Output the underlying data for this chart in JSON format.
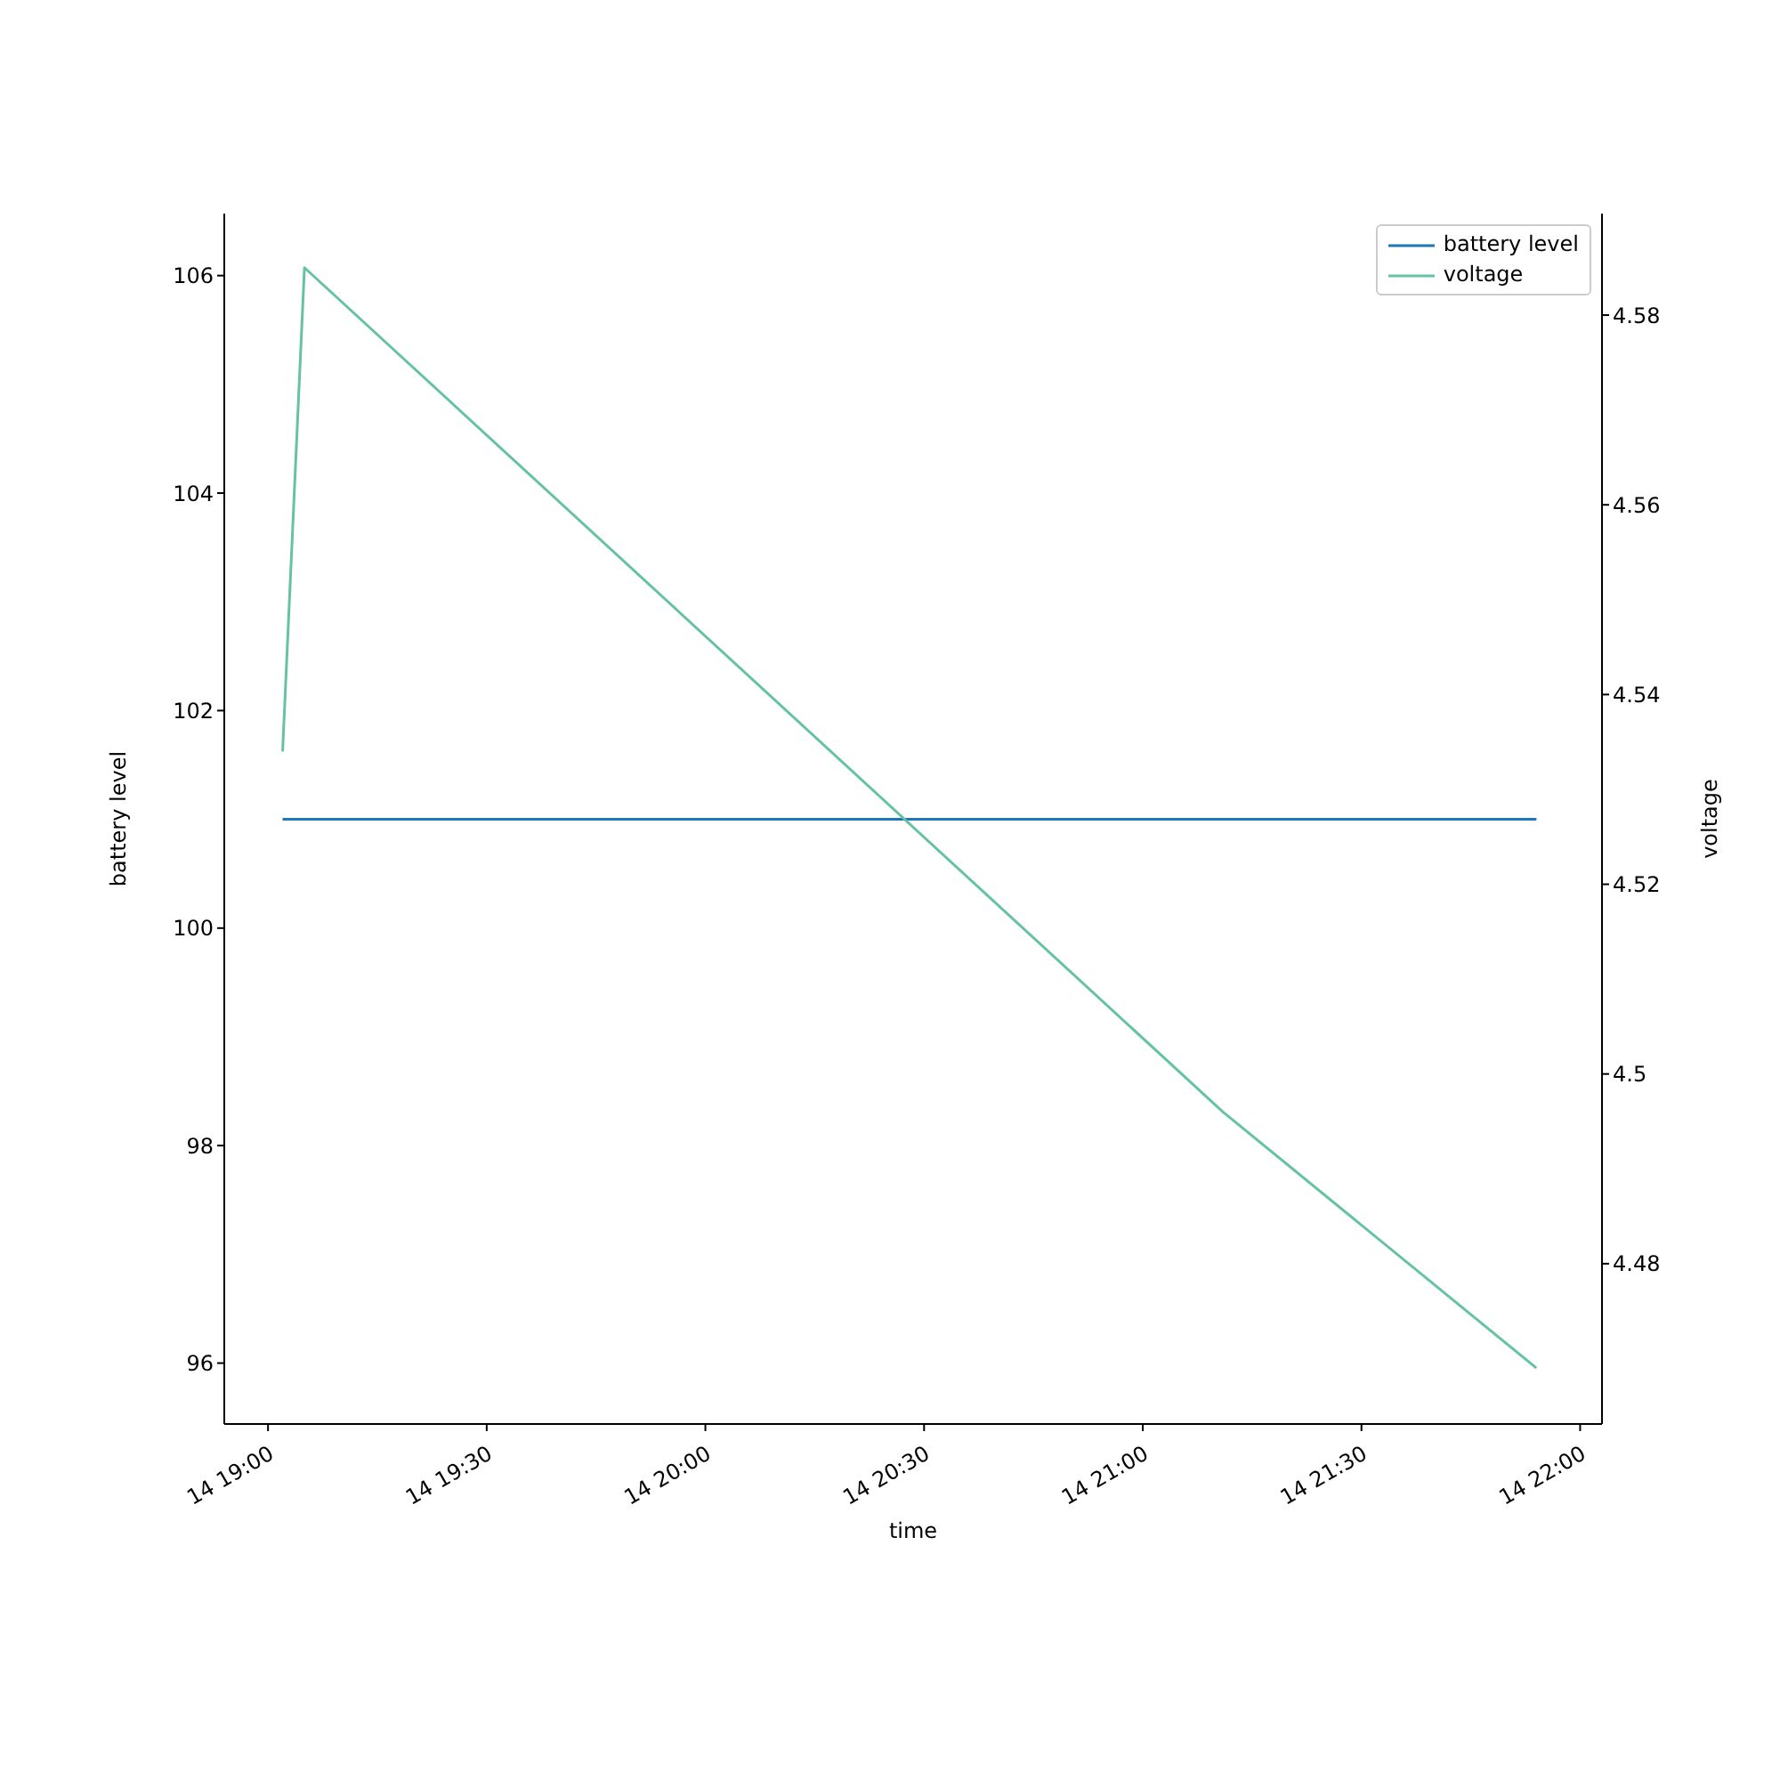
{
  "chart_data": {
    "type": "line",
    "xlabel": "time",
    "ylabel": "battery level",
    "y2label": "voltage",
    "legend": "top right",
    "marker": "none",
    "line_style": "solid",
    "xlim": [
      "--01-14T18:54",
      "--01-14T22:03"
    ],
    "xticks": [
      {
        "value": "--01-14T19:00",
        "label": "14 19:00"
      },
      {
        "value": "--01-14T19:30",
        "label": "14 19:30"
      },
      {
        "value": "--01-14T20:00",
        "label": "14 20:00"
      },
      {
        "value": "--01-14T20:30",
        "label": "14 20:30"
      },
      {
        "value": "--01-14T21:00",
        "label": "14 21:00"
      },
      {
        "value": "--01-14T21:30",
        "label": "14 21:30"
      },
      {
        "value": "--01-14T22:00",
        "label": "14 22:00"
      }
    ],
    "ylim": [
      95.44,
      106.57
    ],
    "yticks": [
      96,
      98,
      100,
      102,
      104,
      106
    ],
    "y2lim": [
      4.4631,
      4.5907
    ],
    "y2ticks": [
      4.48,
      4.5,
      4.52,
      4.54,
      4.56,
      4.58
    ],
    "series": [
      {
        "name": "battery level",
        "color": "#1f77b4",
        "x": [
          "--01-14T19:02",
          "--01-14T21:54"
        ],
        "values": [
          101,
          101
        ]
      },
      {
        "name": "voltage",
        "color": "#66c2a5",
        "axis": "y2",
        "x": [
          "--01-14T19:02",
          "--01-14T19:05",
          "--01-14T21:11",
          "--01-14T21:54"
        ],
        "values": [
          4.534,
          4.585,
          4.496,
          4.469
        ]
      }
    ]
  }
}
